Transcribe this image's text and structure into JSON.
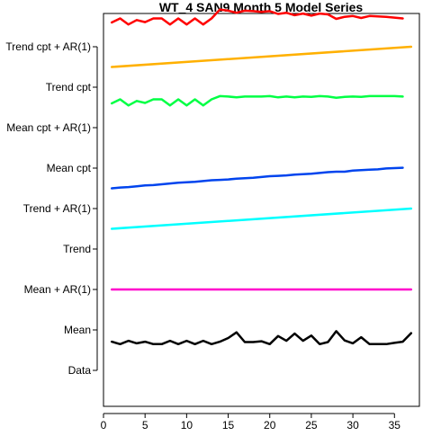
{
  "chart_data": {
    "type": "line",
    "title": "WT_4 SAN9 Month 5 Model Series",
    "xlabel": "",
    "ylabel": "",
    "xlim": [
      0,
      38
    ],
    "x_ticks": [
      0,
      5,
      10,
      15,
      20,
      25,
      30,
      35
    ],
    "categories": [
      "Trend cpt + AR(1)",
      "Trend cpt",
      "Mean cpt + AR(1)",
      "Mean cpt",
      "Trend + AR(1)",
      "Trend",
      "Mean + AR(1)",
      "Mean",
      "Data"
    ],
    "grid": false,
    "legend": "none",
    "series": [
      {
        "name": "Trend cpt + AR(1)",
        "color": "#ff0000",
        "x": [
          1,
          2,
          3,
          4,
          5,
          6,
          7,
          8,
          9,
          10,
          11,
          12,
          13,
          14,
          15,
          16,
          17,
          18,
          19,
          20,
          21,
          22,
          23,
          24,
          25,
          26,
          27,
          28,
          29,
          30,
          31,
          32,
          33,
          34,
          35,
          36
        ],
        "y": [
          8.6,
          8.7,
          8.55,
          8.66,
          8.61,
          8.7,
          8.7,
          8.55,
          8.7,
          8.55,
          8.7,
          8.55,
          8.7,
          8.92,
          8.89,
          8.84,
          8.89,
          8.88,
          8.86,
          8.88,
          8.81,
          8.84,
          8.78,
          8.82,
          8.77,
          8.82,
          8.8,
          8.69,
          8.74,
          8.76,
          8.71,
          8.76,
          8.75,
          8.74,
          8.72,
          8.7
        ]
      },
      {
        "name": "Trend cpt",
        "color": "#ffb000",
        "x": [
          1,
          37
        ],
        "y": [
          7.5,
          8.0
        ]
      },
      {
        "name": "Mean cpt + AR(1)",
        "color": "#00ff44",
        "x": [
          1,
          2,
          3,
          4,
          5,
          6,
          7,
          8,
          9,
          10,
          11,
          12,
          13,
          14,
          15,
          16,
          17,
          18,
          19,
          20,
          21,
          22,
          23,
          24,
          25,
          26,
          27,
          28,
          29,
          30,
          31,
          32,
          33,
          34,
          35,
          36
        ],
        "y": [
          6.6,
          6.7,
          6.55,
          6.66,
          6.61,
          6.7,
          6.7,
          6.55,
          6.7,
          6.55,
          6.7,
          6.55,
          6.7,
          6.78,
          6.77,
          6.75,
          6.77,
          6.77,
          6.77,
          6.78,
          6.75,
          6.77,
          6.75,
          6.77,
          6.76,
          6.78,
          6.77,
          6.74,
          6.76,
          6.77,
          6.76,
          6.78,
          6.78,
          6.78,
          6.78,
          6.77
        ]
      },
      {
        "name": "Trend + AR(1)",
        "color": "#0044ee",
        "x": [
          1,
          2,
          3,
          4,
          5,
          6,
          7,
          8,
          9,
          10,
          11,
          12,
          13,
          14,
          15,
          16,
          17,
          18,
          19,
          20,
          21,
          22,
          23,
          24,
          25,
          26,
          27,
          28,
          29,
          30,
          31,
          32,
          33,
          34,
          35,
          36
        ],
        "y": [
          4.5,
          4.52,
          4.53,
          4.55,
          4.57,
          4.58,
          4.6,
          4.62,
          4.64,
          4.65,
          4.66,
          4.68,
          4.7,
          4.71,
          4.72,
          4.74,
          4.75,
          4.76,
          4.78,
          4.8,
          4.81,
          4.82,
          4.84,
          4.85,
          4.86,
          4.88,
          4.9,
          4.91,
          4.91,
          4.94,
          4.95,
          4.96,
          4.97,
          4.99,
          5.0,
          5.01
        ]
      },
      {
        "name": "Trend",
        "color": "#00ffff",
        "x": [
          1,
          37
        ],
        "y": [
          3.5,
          4.0
        ]
      },
      {
        "name": "Mean",
        "color": "#ff00cc",
        "x": [
          1,
          37
        ],
        "y": [
          2.0,
          2.0
        ]
      },
      {
        "name": "Data",
        "color": "#000000",
        "x": [
          1,
          2,
          3,
          4,
          5,
          6,
          7,
          8,
          9,
          10,
          11,
          12,
          13,
          14,
          15,
          16,
          17,
          18,
          19,
          20,
          21,
          22,
          23,
          24,
          25,
          26,
          27,
          28,
          29,
          30,
          31,
          32,
          33,
          34,
          35,
          36,
          37
        ],
        "y": [
          0.71,
          0.65,
          0.73,
          0.67,
          0.71,
          0.65,
          0.65,
          0.73,
          0.65,
          0.73,
          0.65,
          0.73,
          0.65,
          0.71,
          0.8,
          0.94,
          0.7,
          0.7,
          0.72,
          0.65,
          0.85,
          0.73,
          0.91,
          0.73,
          0.86,
          0.65,
          0.7,
          0.97,
          0.74,
          0.67,
          0.82,
          0.65,
          0.65,
          0.65,
          0.68,
          0.71,
          0.92
        ]
      }
    ]
  }
}
